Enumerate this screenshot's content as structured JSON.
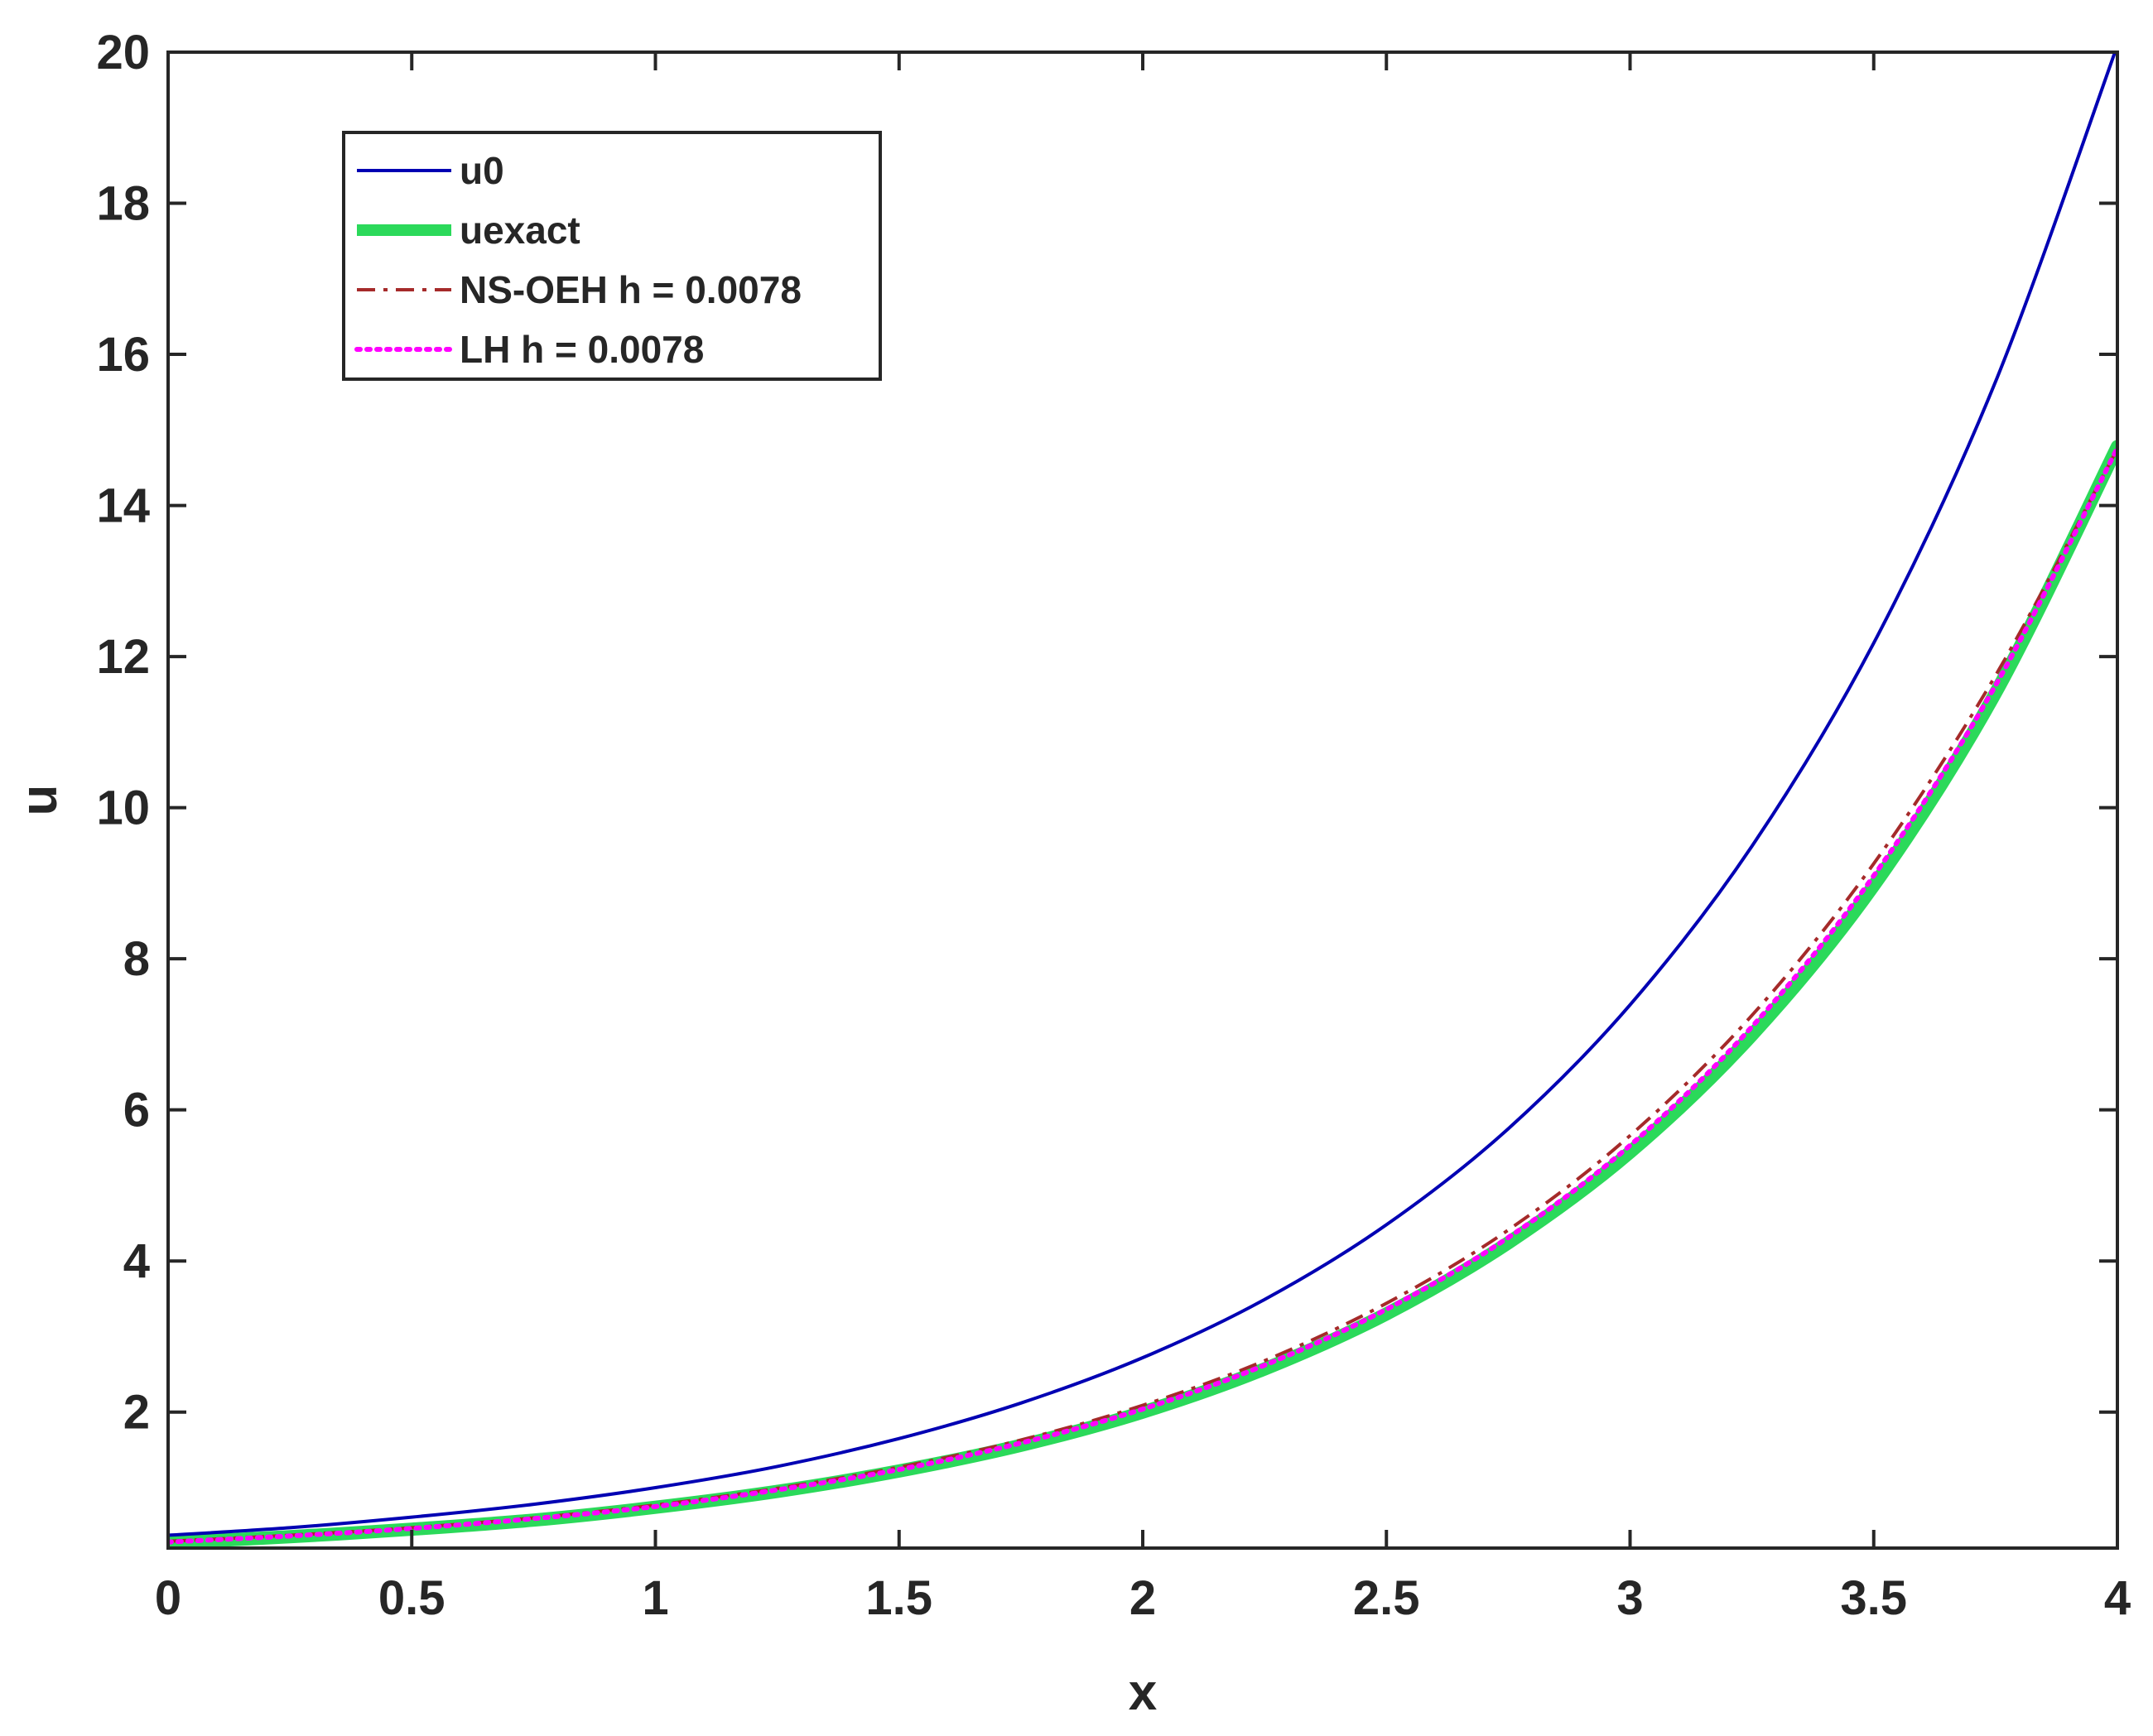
{
  "chart_data": {
    "type": "line",
    "xlabel": "x",
    "ylabel": "u",
    "xlim": [
      0,
      4
    ],
    "ylim": [
      0.2,
      20
    ],
    "x_ticks": [
      "0",
      "0.5",
      "1",
      "1.5",
      "2",
      "2.5",
      "3",
      "3.5",
      "4"
    ],
    "y_ticks": [
      "2",
      "4",
      "6",
      "8",
      "10",
      "12",
      "14",
      "16",
      "18",
      "20"
    ],
    "grid": false,
    "legend_position": "top-left",
    "x": [
      0,
      0.25,
      0.5,
      0.75,
      1,
      1.25,
      1.5,
      1.75,
      2,
      2.25,
      2.5,
      2.75,
      3,
      3.25,
      3.5,
      3.75,
      4
    ],
    "series": [
      {
        "name": "u0",
        "color": "#0000b3",
        "style": "solid",
        "values": [
          0.37,
          0.47,
          0.61,
          0.78,
          1.0,
          1.28,
          1.65,
          2.12,
          2.72,
          3.49,
          4.48,
          5.75,
          7.39,
          9.49,
          12.18,
          15.64,
          20.09
        ]
      },
      {
        "name": "uexact",
        "color": "#2bd95a",
        "style": "thick",
        "values": [
          0.27,
          0.35,
          0.45,
          0.57,
          0.74,
          0.95,
          1.22,
          1.56,
          2.0,
          2.57,
          3.3,
          4.24,
          5.44,
          6.99,
          8.97,
          11.52,
          14.78
        ]
      },
      {
        "name": "NS-OEH h = 0.0078",
        "color": "#a52a2a",
        "style": "dashdot",
        "values": [
          0.29,
          0.37,
          0.47,
          0.6,
          0.77,
          0.99,
          1.27,
          1.63,
          2.09,
          2.68,
          3.44,
          4.41,
          5.66,
          7.25,
          9.26,
          11.75,
          14.75
        ]
      },
      {
        "name": "LH h = 0.0078",
        "color": "#ff00ff",
        "style": "dotted",
        "values": [
          0.28,
          0.36,
          0.46,
          0.59,
          0.75,
          0.97,
          1.24,
          1.59,
          2.04,
          2.62,
          3.36,
          4.31,
          5.53,
          7.1,
          9.1,
          11.62,
          14.76
        ]
      }
    ]
  }
}
